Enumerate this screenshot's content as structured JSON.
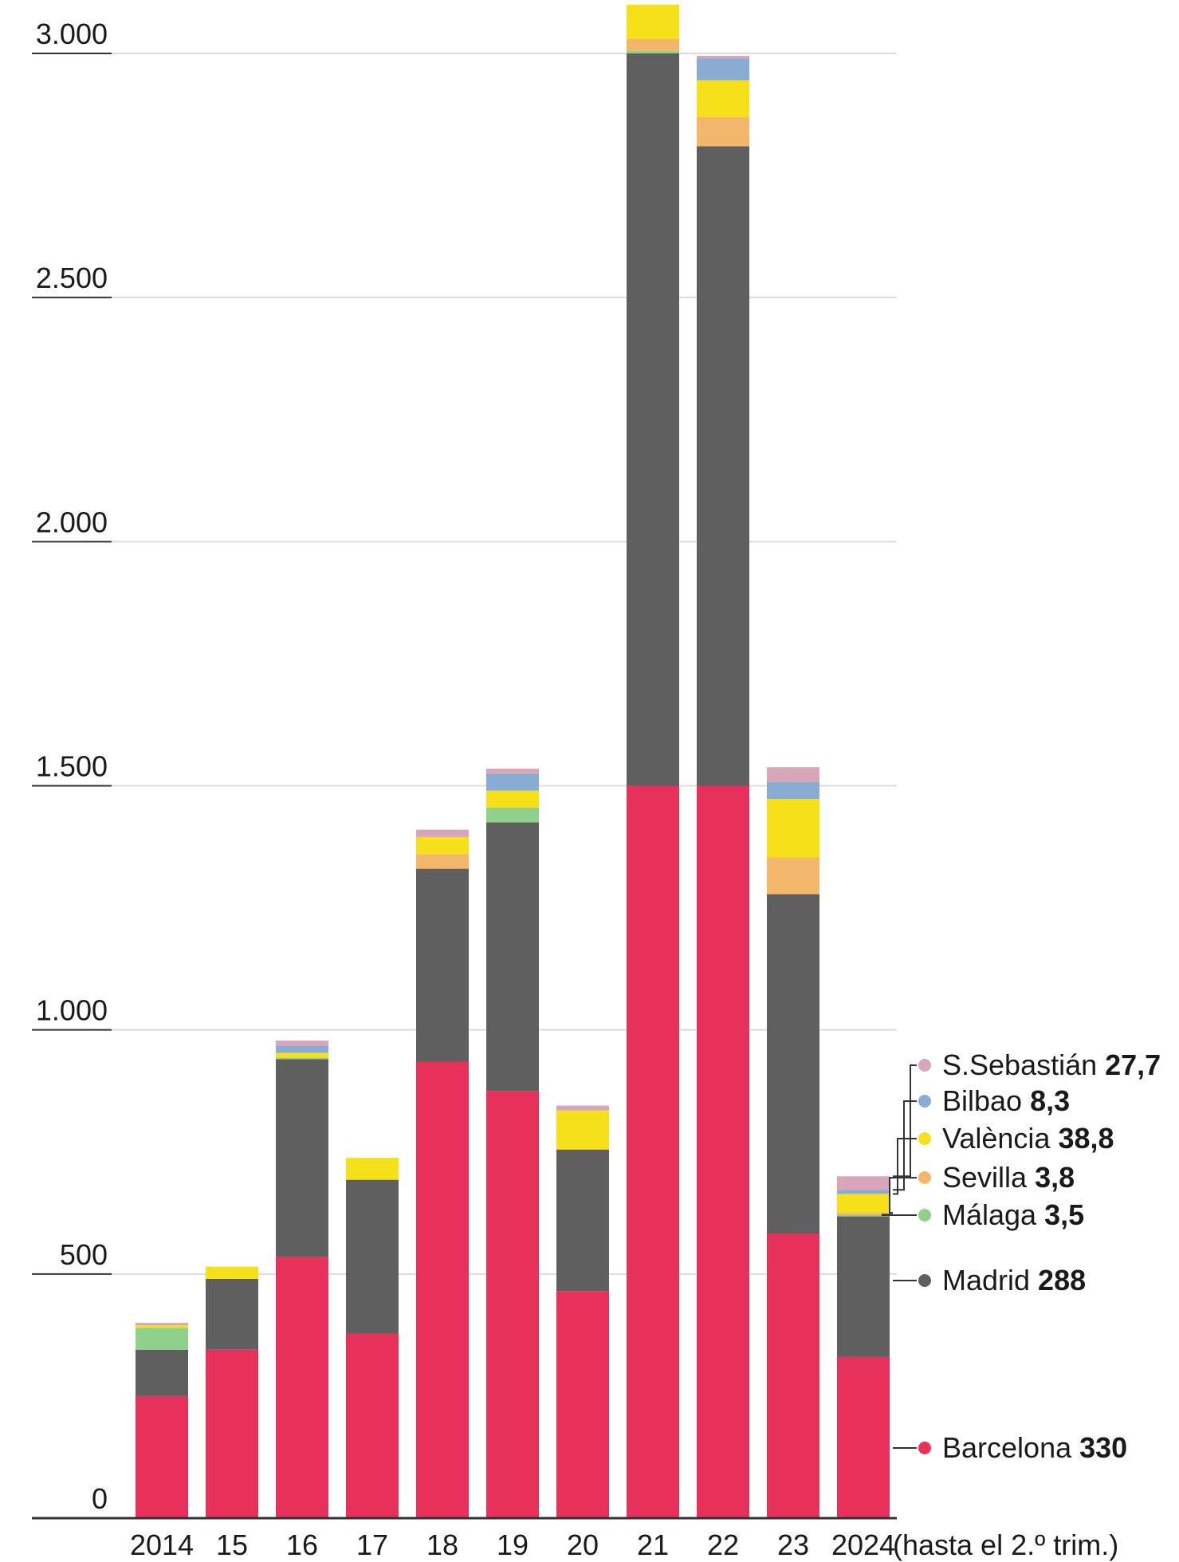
{
  "chart_data": {
    "type": "bar",
    "stacked": true,
    "categories": [
      "2014",
      "15",
      "16",
      "17",
      "18",
      "19",
      "20",
      "21",
      "22",
      "23",
      "2024"
    ],
    "last_category_note": "(hasta el 2.º trim.)",
    "ylim": [
      0,
      3050
    ],
    "yticks": [
      0,
      500,
      1000,
      1500,
      2000,
      2500,
      3000
    ],
    "ytick_labels": [
      "0",
      "500",
      "1.000",
      "1.500",
      "2.000",
      "2.500",
      "3.000"
    ],
    "grid": true,
    "legend_placement": "right",
    "series": [
      {
        "name": "Barcelona",
        "label_value": "330",
        "color": "#e8315a",
        "values": [
          250,
          345,
          535,
          378,
          935,
          875,
          465,
          1500,
          1500,
          583,
          330
        ]
      },
      {
        "name": "Madrid",
        "label_value": "288",
        "color": "#5f5f5f",
        "values": [
          95,
          145,
          405,
          315,
          395,
          550,
          290,
          1500,
          1310,
          695,
          288
        ]
      },
      {
        "name": "Málaga",
        "label_value": "3,5",
        "color": "#8fd08a",
        "values": [
          45,
          0,
          3,
          0,
          0,
          30,
          0,
          5,
          0,
          0,
          3.5
        ]
      },
      {
        "name": "Sevilla",
        "label_value": "3,8",
        "color": "#f2b76a",
        "values": [
          0,
          0,
          0,
          0,
          30,
          0,
          0,
          25,
          60,
          75,
          3.8
        ]
      },
      {
        "name": "València",
        "label_value": "38,8",
        "color": "#f6e01a",
        "values": [
          5,
          25,
          10,
          45,
          35,
          35,
          80,
          70,
          75,
          120,
          38.8
        ]
      },
      {
        "name": "Bilbao",
        "label_value": "8,3",
        "color": "#89acd3",
        "values": [
          0,
          0,
          15,
          0,
          0,
          35,
          0,
          0,
          45,
          35,
          8.3
        ]
      },
      {
        "name": "S.Sebastián",
        "label_value": "27,7",
        "color": "#d8a6b8",
        "values": [
          5,
          0,
          10,
          0,
          15,
          10,
          10,
          0,
          5,
          30,
          27.7
        ]
      }
    ]
  }
}
